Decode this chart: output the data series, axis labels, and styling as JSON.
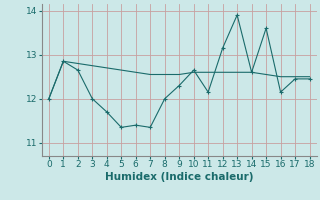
{
  "x": [
    0,
    1,
    2,
    3,
    4,
    5,
    6,
    7,
    8,
    9,
    10,
    11,
    12,
    13,
    14,
    15,
    16,
    17,
    18
  ],
  "y_data": [
    12.0,
    12.85,
    12.65,
    12.0,
    11.7,
    11.35,
    11.4,
    11.35,
    12.0,
    12.3,
    12.65,
    12.15,
    13.15,
    13.9,
    12.6,
    13.6,
    12.15,
    12.45,
    12.45
  ],
  "y_trend": [
    12.0,
    12.85,
    12.8,
    12.75,
    12.7,
    12.65,
    12.6,
    12.55,
    12.55,
    12.55,
    12.6,
    12.6,
    12.6,
    12.6,
    12.6,
    12.55,
    12.5,
    12.5,
    12.5
  ],
  "line_color": "#1a6b6b",
  "bg_color": "#cce8e8",
  "grid_color": "#c8a0a0",
  "xlim": [
    -0.5,
    18.5
  ],
  "ylim": [
    10.7,
    14.15
  ],
  "yticks": [
    11,
    12,
    13,
    14
  ],
  "xticks": [
    0,
    1,
    2,
    3,
    4,
    5,
    6,
    7,
    8,
    9,
    10,
    11,
    12,
    13,
    14,
    15,
    16,
    17,
    18
  ],
  "xlabel": "Humidex (Indice chaleur)",
  "xlabel_fontsize": 7.5,
  "tick_fontsize": 6.5,
  "marker": "+"
}
